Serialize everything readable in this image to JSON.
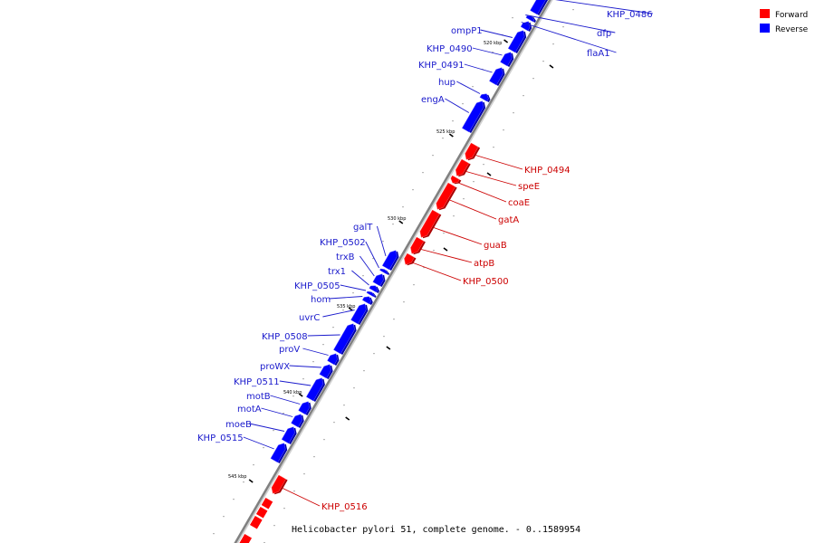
{
  "legend": {
    "forward_label": "Forward",
    "reverse_label": "Reverse",
    "forward_color": "#ff0000",
    "reverse_color": "#0000ff"
  },
  "caption": "Helicobacter pylori 51, complete genome. - 0..1589954",
  "colors": {
    "backbone": "#808080",
    "label_forward": "#cc0000",
    "label_reverse": "#1a1acc"
  },
  "kbp_marks": [
    "520 kbp",
    "525 kbp",
    "530 kbp",
    "535 kbp",
    "540 kbp",
    "545 kbp"
  ],
  "genes": [
    {
      "name": "KHP_0486",
      "strand": "reverse"
    },
    {
      "name": "dfp",
      "strand": "reverse"
    },
    {
      "name": "flaA1",
      "strand": "reverse"
    },
    {
      "name": "ompP1",
      "strand": "reverse"
    },
    {
      "name": "KHP_0490",
      "strand": "reverse"
    },
    {
      "name": "KHP_0491",
      "strand": "reverse"
    },
    {
      "name": "hup",
      "strand": "reverse"
    },
    {
      "name": "engA",
      "strand": "reverse"
    },
    {
      "name": "KHP_0494",
      "strand": "forward"
    },
    {
      "name": "speE",
      "strand": "forward"
    },
    {
      "name": "coaE",
      "strand": "forward"
    },
    {
      "name": "gatA",
      "strand": "forward"
    },
    {
      "name": "guaB",
      "strand": "forward"
    },
    {
      "name": "atpB",
      "strand": "forward"
    },
    {
      "name": "KHP_0500",
      "strand": "forward"
    },
    {
      "name": "galT",
      "strand": "reverse"
    },
    {
      "name": "KHP_0502",
      "strand": "reverse"
    },
    {
      "name": "trxB",
      "strand": "reverse"
    },
    {
      "name": "trx1",
      "strand": "reverse"
    },
    {
      "name": "KHP_0505",
      "strand": "reverse"
    },
    {
      "name": "hom",
      "strand": "reverse"
    },
    {
      "name": "uvrC",
      "strand": "reverse"
    },
    {
      "name": "KHP_0508",
      "strand": "reverse"
    },
    {
      "name": "proV",
      "strand": "reverse"
    },
    {
      "name": "proWX",
      "strand": "reverse"
    },
    {
      "name": "KHP_0511",
      "strand": "reverse"
    },
    {
      "name": "motB",
      "strand": "reverse"
    },
    {
      "name": "motA",
      "strand": "reverse"
    },
    {
      "name": "moeB",
      "strand": "reverse"
    },
    {
      "name": "KHP_0515",
      "strand": "reverse"
    },
    {
      "name": "KHP_0516",
      "strand": "forward"
    }
  ]
}
